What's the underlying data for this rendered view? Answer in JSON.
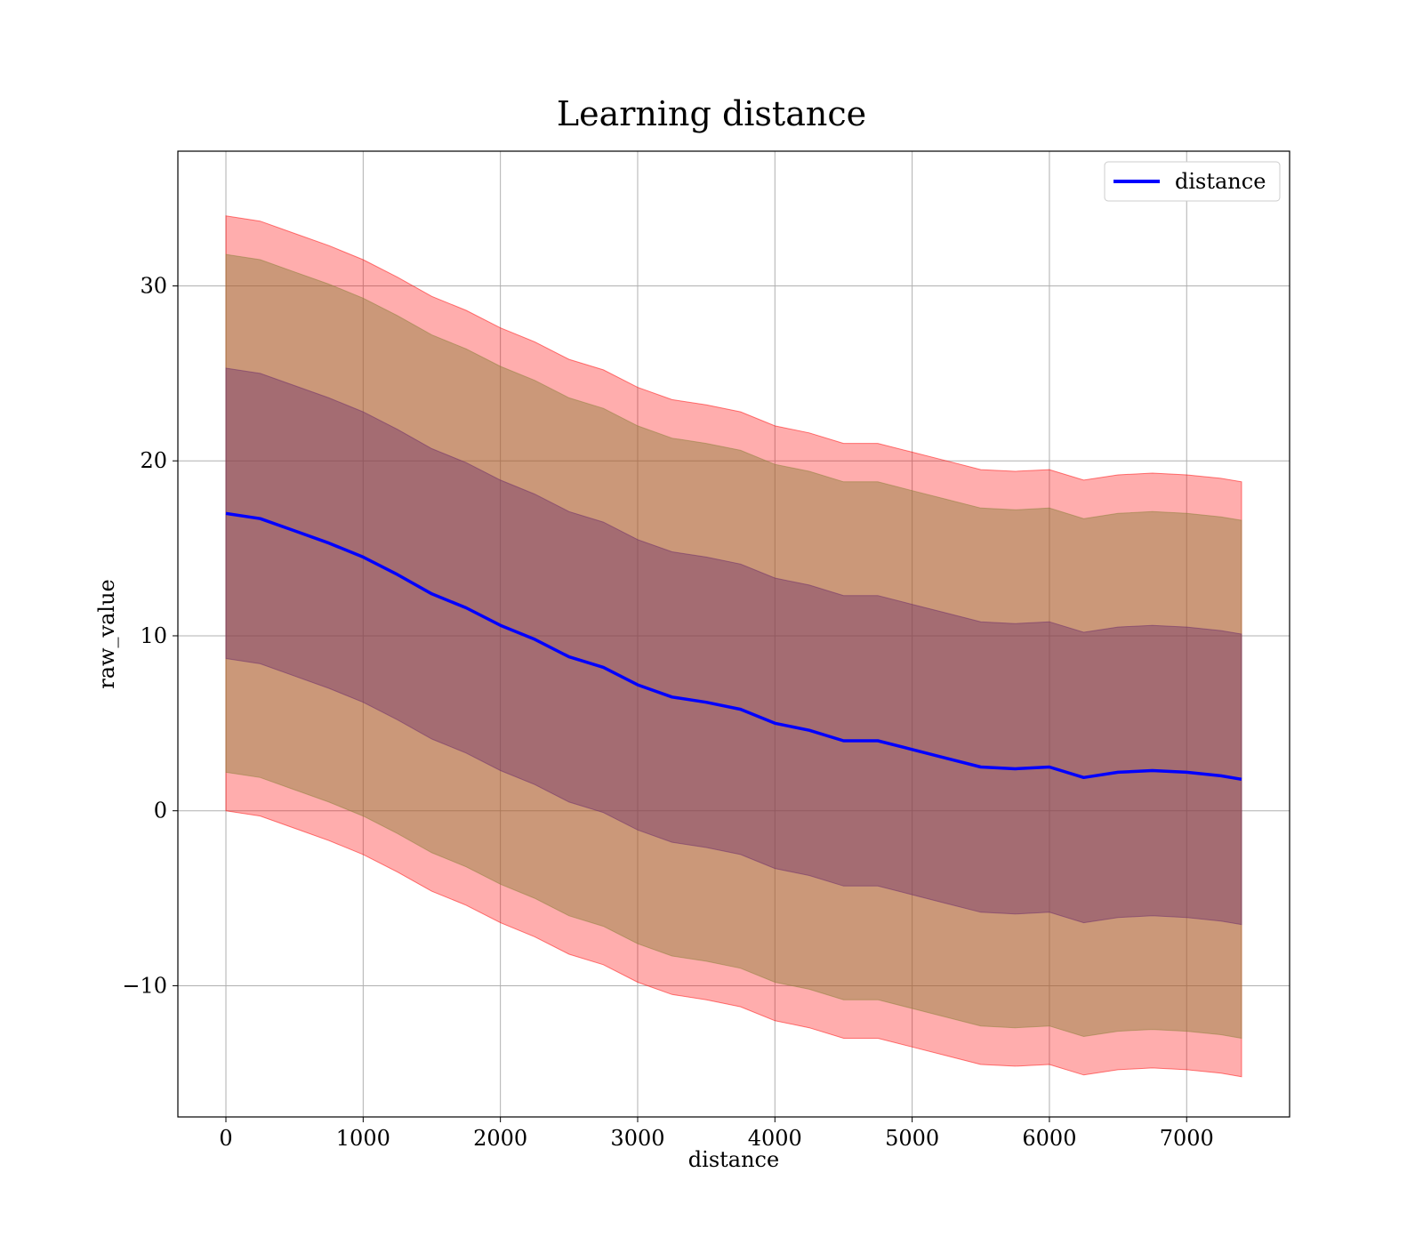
{
  "chart_data": {
    "type": "line",
    "title": "Learning distance",
    "xlabel": "distance",
    "ylabel": "raw_value",
    "xlim": [
      -350,
      7750
    ],
    "ylim": [
      -17.5,
      37.7
    ],
    "xticks": [
      0,
      1000,
      2000,
      3000,
      4000,
      5000,
      6000,
      7000
    ],
    "yticks": [
      -10,
      0,
      10,
      20,
      30
    ],
    "xtick_labels": [
      "0",
      "1000",
      "2000",
      "3000",
      "4000",
      "5000",
      "6000",
      "7000"
    ],
    "ytick_labels": [
      "−10",
      "0",
      "10",
      "20",
      "30"
    ],
    "grid": true,
    "legend": {
      "position": "top-right",
      "entries": [
        "distance"
      ]
    },
    "colors": {
      "line": "#0000ff",
      "band_outer": "#ff0000",
      "band_middle": "#8b7f3a",
      "band_inner": "#6a2a6a",
      "grid": "#b0b0b0"
    },
    "x": [
      0,
      250,
      500,
      750,
      1000,
      1250,
      1500,
      1750,
      2000,
      2250,
      2500,
      2750,
      3000,
      3250,
      3500,
      3750,
      4000,
      4250,
      4500,
      4750,
      5000,
      5250,
      5500,
      5750,
      6000,
      6250,
      6500,
      6750,
      7000,
      7250,
      7400
    ],
    "series": [
      {
        "name": "distance",
        "values": [
          17.0,
          16.7,
          16.0,
          15.3,
          14.5,
          13.5,
          12.4,
          11.6,
          10.6,
          9.8,
          8.8,
          8.2,
          7.2,
          6.5,
          6.2,
          5.8,
          5.0,
          4.6,
          4.0,
          4.0,
          3.5,
          3.0,
          2.5,
          2.4,
          2.5,
          1.9,
          2.2,
          2.3,
          2.2,
          2.0,
          1.8
        ]
      }
    ],
    "bands": [
      {
        "level": "outer",
        "lower": [
          0.0,
          -0.3,
          -1.0,
          -1.7,
          -2.5,
          -3.5,
          -4.6,
          -5.4,
          -6.4,
          -7.2,
          -8.2,
          -8.8,
          -9.8,
          -10.5,
          -10.8,
          -11.2,
          -12.0,
          -12.4,
          -13.0,
          -13.0,
          -13.5,
          -14.0,
          -14.5,
          -14.6,
          -14.5,
          -15.1,
          -14.8,
          -14.7,
          -14.8,
          -15.0,
          -15.2
        ],
        "upper": [
          34.0,
          33.7,
          33.0,
          32.3,
          31.5,
          30.5,
          29.4,
          28.6,
          27.6,
          26.8,
          25.8,
          25.2,
          24.2,
          23.5,
          23.2,
          22.8,
          22.0,
          21.6,
          21.0,
          21.0,
          20.5,
          20.0,
          19.5,
          19.4,
          19.5,
          18.9,
          19.2,
          19.3,
          19.2,
          19.0,
          18.8
        ]
      },
      {
        "level": "middle",
        "lower": [
          2.2,
          1.9,
          1.2,
          0.5,
          -0.3,
          -1.3,
          -2.4,
          -3.2,
          -4.2,
          -5.0,
          -6.0,
          -6.6,
          -7.6,
          -8.3,
          -8.6,
          -9.0,
          -9.8,
          -10.2,
          -10.8,
          -10.8,
          -11.3,
          -11.8,
          -12.3,
          -12.4,
          -12.3,
          -12.9,
          -12.6,
          -12.5,
          -12.6,
          -12.8,
          -13.0
        ],
        "upper": [
          31.8,
          31.5,
          30.8,
          30.1,
          29.3,
          28.3,
          27.2,
          26.4,
          25.4,
          24.6,
          23.6,
          23.0,
          22.0,
          21.3,
          21.0,
          20.6,
          19.8,
          19.4,
          18.8,
          18.8,
          18.3,
          17.8,
          17.3,
          17.2,
          17.3,
          16.7,
          17.0,
          17.1,
          17.0,
          16.8,
          16.6
        ]
      },
      {
        "level": "inner",
        "lower": [
          8.7,
          8.4,
          7.7,
          7.0,
          6.2,
          5.2,
          4.1,
          3.3,
          2.3,
          1.5,
          0.5,
          -0.1,
          -1.1,
          -1.8,
          -2.1,
          -2.5,
          -3.3,
          -3.7,
          -4.3,
          -4.3,
          -4.8,
          -5.3,
          -5.8,
          -5.9,
          -5.8,
          -6.4,
          -6.1,
          -6.0,
          -6.1,
          -6.3,
          -6.5
        ],
        "upper": [
          25.3,
          25.0,
          24.3,
          23.6,
          22.8,
          21.8,
          20.7,
          19.9,
          18.9,
          18.1,
          17.1,
          16.5,
          15.5,
          14.8,
          14.5,
          14.1,
          13.3,
          12.9,
          12.3,
          12.3,
          11.8,
          11.3,
          10.8,
          10.7,
          10.8,
          10.2,
          10.5,
          10.6,
          10.5,
          10.3,
          10.1
        ]
      }
    ]
  }
}
